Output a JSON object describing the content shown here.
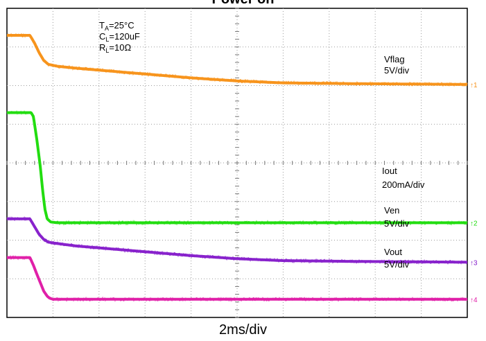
{
  "title": "Power on",
  "chart_data": {
    "type": "line",
    "title": "Power on",
    "xlabel": "2ms/div",
    "conditions": [
      {
        "base": "T",
        "sub": "A",
        "rest": "=25°C"
      },
      {
        "base": "C",
        "sub": "L",
        "rest": "=120uF"
      },
      {
        "base": "R",
        "sub": "L",
        "rest": "=10Ω"
      }
    ],
    "x_unit": "ms",
    "xlim": [
      0,
      20
    ],
    "divisions": {
      "x": 10,
      "y": 8
    },
    "grid": true,
    "series": [
      {
        "name": "Vflag",
        "scale": "5V/div",
        "marker": "1",
        "color": "#f7941d",
        "x": [
          0,
          1.0,
          1.2,
          1.4,
          1.6,
          1.8,
          2.2,
          3,
          5,
          8,
          10,
          12,
          15,
          20
        ],
        "y": [
          7.3,
          7.3,
          7.1,
          6.85,
          6.65,
          6.55,
          6.5,
          6.45,
          6.35,
          6.2,
          6.12,
          6.07,
          6.05,
          6.03
        ]
      },
      {
        "name": "Iout",
        "scale": "200mA/div",
        "marker": "2",
        "color": "#22dd11",
        "x": [
          0,
          1.05,
          1.15,
          1.3,
          1.45,
          1.55,
          1.65,
          1.75,
          1.9,
          2.2,
          20
        ],
        "y": [
          5.3,
          5.3,
          5.2,
          4.6,
          3.9,
          3.3,
          2.8,
          2.55,
          2.47,
          2.45,
          2.45
        ]
      },
      {
        "name": "Ven",
        "scale": "5V/div",
        "marker": "3",
        "color": "#8822cc",
        "x": [
          0,
          1.0,
          1.2,
          1.4,
          1.6,
          1.8,
          2.1,
          3,
          5,
          8,
          10,
          12,
          15,
          20
        ],
        "y": [
          2.55,
          2.55,
          2.35,
          2.15,
          2.02,
          1.95,
          1.92,
          1.85,
          1.75,
          1.6,
          1.52,
          1.47,
          1.45,
          1.43
        ]
      },
      {
        "name": "Vout",
        "scale": "5V/div",
        "marker": "4",
        "color": "#e020a8",
        "x": [
          0,
          1.0,
          1.15,
          1.3,
          1.45,
          1.6,
          1.75,
          1.85,
          2.0,
          20
        ],
        "y": [
          1.55,
          1.55,
          1.35,
          1.12,
          0.9,
          0.68,
          0.55,
          0.5,
          0.47,
          0.47
        ]
      }
    ]
  }
}
